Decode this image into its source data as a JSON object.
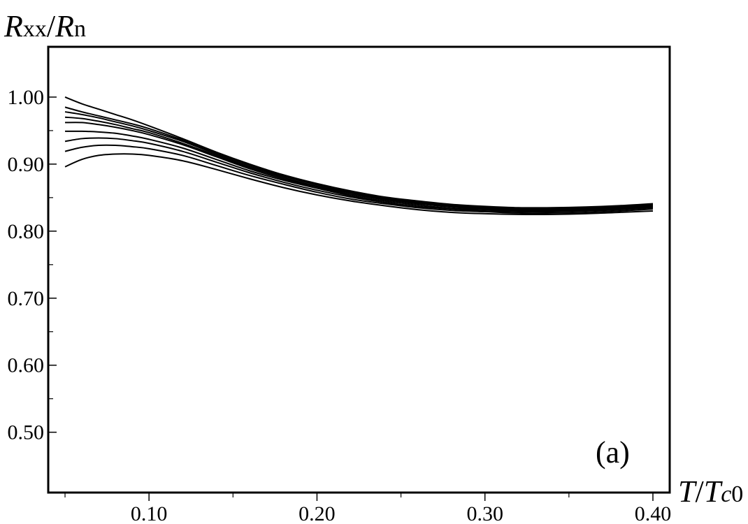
{
  "chart_data": {
    "type": "line",
    "ylabel": {
      "main": "R",
      "sub": "xx",
      "slash": "/",
      "main2": "R",
      "sub2": "n"
    },
    "xlabel": {
      "main": "T",
      "slash": "/",
      "main2": "T",
      "sub_italic": "c",
      "sub": "0"
    },
    "panel_label": "(a)",
    "xlim": [
      0.04,
      0.41
    ],
    "ylim": [
      0.41,
      1.075
    ],
    "x_ticks": [
      {
        "value": 0.1,
        "label": "0.10"
      },
      {
        "value": 0.2,
        "label": "0.20"
      },
      {
        "value": 0.3,
        "label": "0.30"
      },
      {
        "value": 0.4,
        "label": "0.40"
      }
    ],
    "x_minor_ticks": [
      0.05,
      0.15,
      0.25,
      0.35
    ],
    "y_ticks": [
      {
        "value": 0.5,
        "label": "0.50"
      },
      {
        "value": 0.6,
        "label": "0.60"
      },
      {
        "value": 0.7,
        "label": "0.70"
      },
      {
        "value": 0.8,
        "label": "0.80"
      },
      {
        "value": 0.9,
        "label": "0.90"
      },
      {
        "value": 1.0,
        "label": "1.00"
      }
    ],
    "y_minor_ticks": [
      0.55,
      0.65,
      0.75,
      0.85,
      0.95
    ],
    "x": [
      0.05,
      0.06,
      0.07,
      0.08,
      0.09,
      0.1,
      0.12,
      0.14,
      0.16,
      0.18,
      0.2,
      0.22,
      0.24,
      0.26,
      0.28,
      0.3,
      0.32,
      0.34,
      0.36,
      0.38,
      0.4
    ],
    "series": [
      {
        "values": [
          1.0,
          0.99,
          0.982,
          0.974,
          0.966,
          0.957,
          0.938,
          0.918,
          0.9,
          0.884,
          0.871,
          0.86,
          0.851,
          0.845,
          0.84,
          0.837,
          0.835,
          0.835,
          0.836,
          0.838,
          0.841
        ]
      },
      {
        "values": [
          0.985,
          0.978,
          0.972,
          0.966,
          0.96,
          0.953,
          0.936,
          0.917,
          0.899,
          0.883,
          0.87,
          0.859,
          0.85,
          0.844,
          0.839,
          0.836,
          0.834,
          0.834,
          0.835,
          0.837,
          0.84
        ]
      },
      {
        "values": [
          0.978,
          0.974,
          0.969,
          0.963,
          0.957,
          0.95,
          0.934,
          0.915,
          0.897,
          0.882,
          0.869,
          0.858,
          0.849,
          0.843,
          0.838,
          0.835,
          0.833,
          0.833,
          0.834,
          0.836,
          0.839
        ]
      },
      {
        "values": [
          0.97,
          0.968,
          0.964,
          0.959,
          0.953,
          0.947,
          0.931,
          0.913,
          0.895,
          0.88,
          0.867,
          0.857,
          0.848,
          0.842,
          0.837,
          0.834,
          0.832,
          0.832,
          0.833,
          0.835,
          0.838
        ]
      },
      {
        "values": [
          0.962,
          0.962,
          0.959,
          0.955,
          0.95,
          0.944,
          0.929,
          0.911,
          0.893,
          0.878,
          0.866,
          0.855,
          0.847,
          0.841,
          0.836,
          0.833,
          0.831,
          0.831,
          0.832,
          0.834,
          0.837
        ]
      },
      {
        "values": [
          0.949,
          0.949,
          0.948,
          0.946,
          0.942,
          0.937,
          0.924,
          0.907,
          0.89,
          0.876,
          0.864,
          0.853,
          0.845,
          0.839,
          0.834,
          0.832,
          0.83,
          0.83,
          0.831,
          0.833,
          0.836
        ]
      },
      {
        "values": [
          0.934,
          0.938,
          0.939,
          0.938,
          0.935,
          0.931,
          0.919,
          0.903,
          0.887,
          0.873,
          0.861,
          0.851,
          0.843,
          0.837,
          0.833,
          0.83,
          0.829,
          0.829,
          0.83,
          0.832,
          0.835
        ]
      },
      {
        "values": [
          0.919,
          0.925,
          0.928,
          0.928,
          0.926,
          0.923,
          0.913,
          0.898,
          0.883,
          0.87,
          0.858,
          0.848,
          0.841,
          0.835,
          0.831,
          0.829,
          0.827,
          0.827,
          0.828,
          0.83,
          0.833
        ]
      },
      {
        "values": [
          0.896,
          0.907,
          0.913,
          0.915,
          0.915,
          0.913,
          0.905,
          0.892,
          0.878,
          0.865,
          0.854,
          0.845,
          0.838,
          0.832,
          0.828,
          0.826,
          0.825,
          0.825,
          0.826,
          0.828,
          0.83
        ]
      }
    ]
  }
}
